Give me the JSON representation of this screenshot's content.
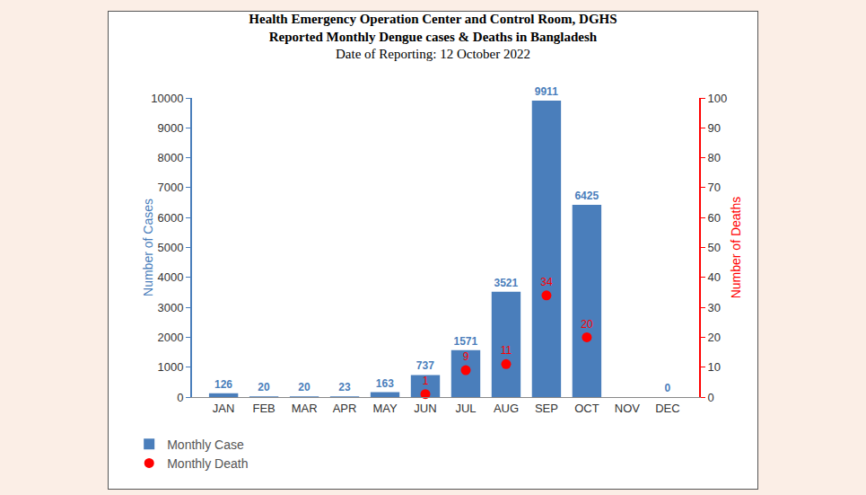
{
  "chart_data": {
    "type": "bar",
    "title": "Health Emergency Operation Center and Control Room, DGHS\nReported Monthly Dengue cases & Deaths in Bangladesh",
    "subtitle": "Date of Reporting: 12 October 2022",
    "ylabel": "Number of Cases",
    "y2label": "Number of Deaths",
    "categories": [
      "JAN",
      "FEB",
      "MAR",
      "APR",
      "MAY",
      "JUN",
      "JUL",
      "AUG",
      "SEP",
      "OCT",
      "NOV",
      "DEC"
    ],
    "series": [
      {
        "name": "Monthly Case",
        "type": "bar",
        "color": "#4a7ebb",
        "values": [
          126,
          20,
          20,
          23,
          163,
          737,
          1571,
          3521,
          9911,
          6425,
          0,
          0
        ],
        "value_labels": [
          "126",
          "20",
          "20",
          "23",
          "163",
          "737",
          "1571",
          "3521",
          "9911",
          "6425",
          null,
          "0"
        ]
      },
      {
        "name": "Monthly Death",
        "type": "scatter",
        "marker": "circle",
        "color": "#ff0000",
        "axis": "y2",
        "values": [
          null,
          null,
          null,
          null,
          null,
          1,
          9,
          11,
          34,
          20,
          null,
          null
        ]
      }
    ],
    "ylim": [
      0,
      10000
    ],
    "yticks": [
      0,
      1000,
      2000,
      3000,
      4000,
      5000,
      6000,
      7000,
      8000,
      9000,
      10000
    ],
    "y2lim": [
      0,
      100
    ],
    "y2ticks": [
      0,
      10,
      20,
      30,
      40,
      50,
      60,
      70,
      80,
      90,
      100
    ],
    "grid": false,
    "legend": "bottom left",
    "data_labels": true
  }
}
